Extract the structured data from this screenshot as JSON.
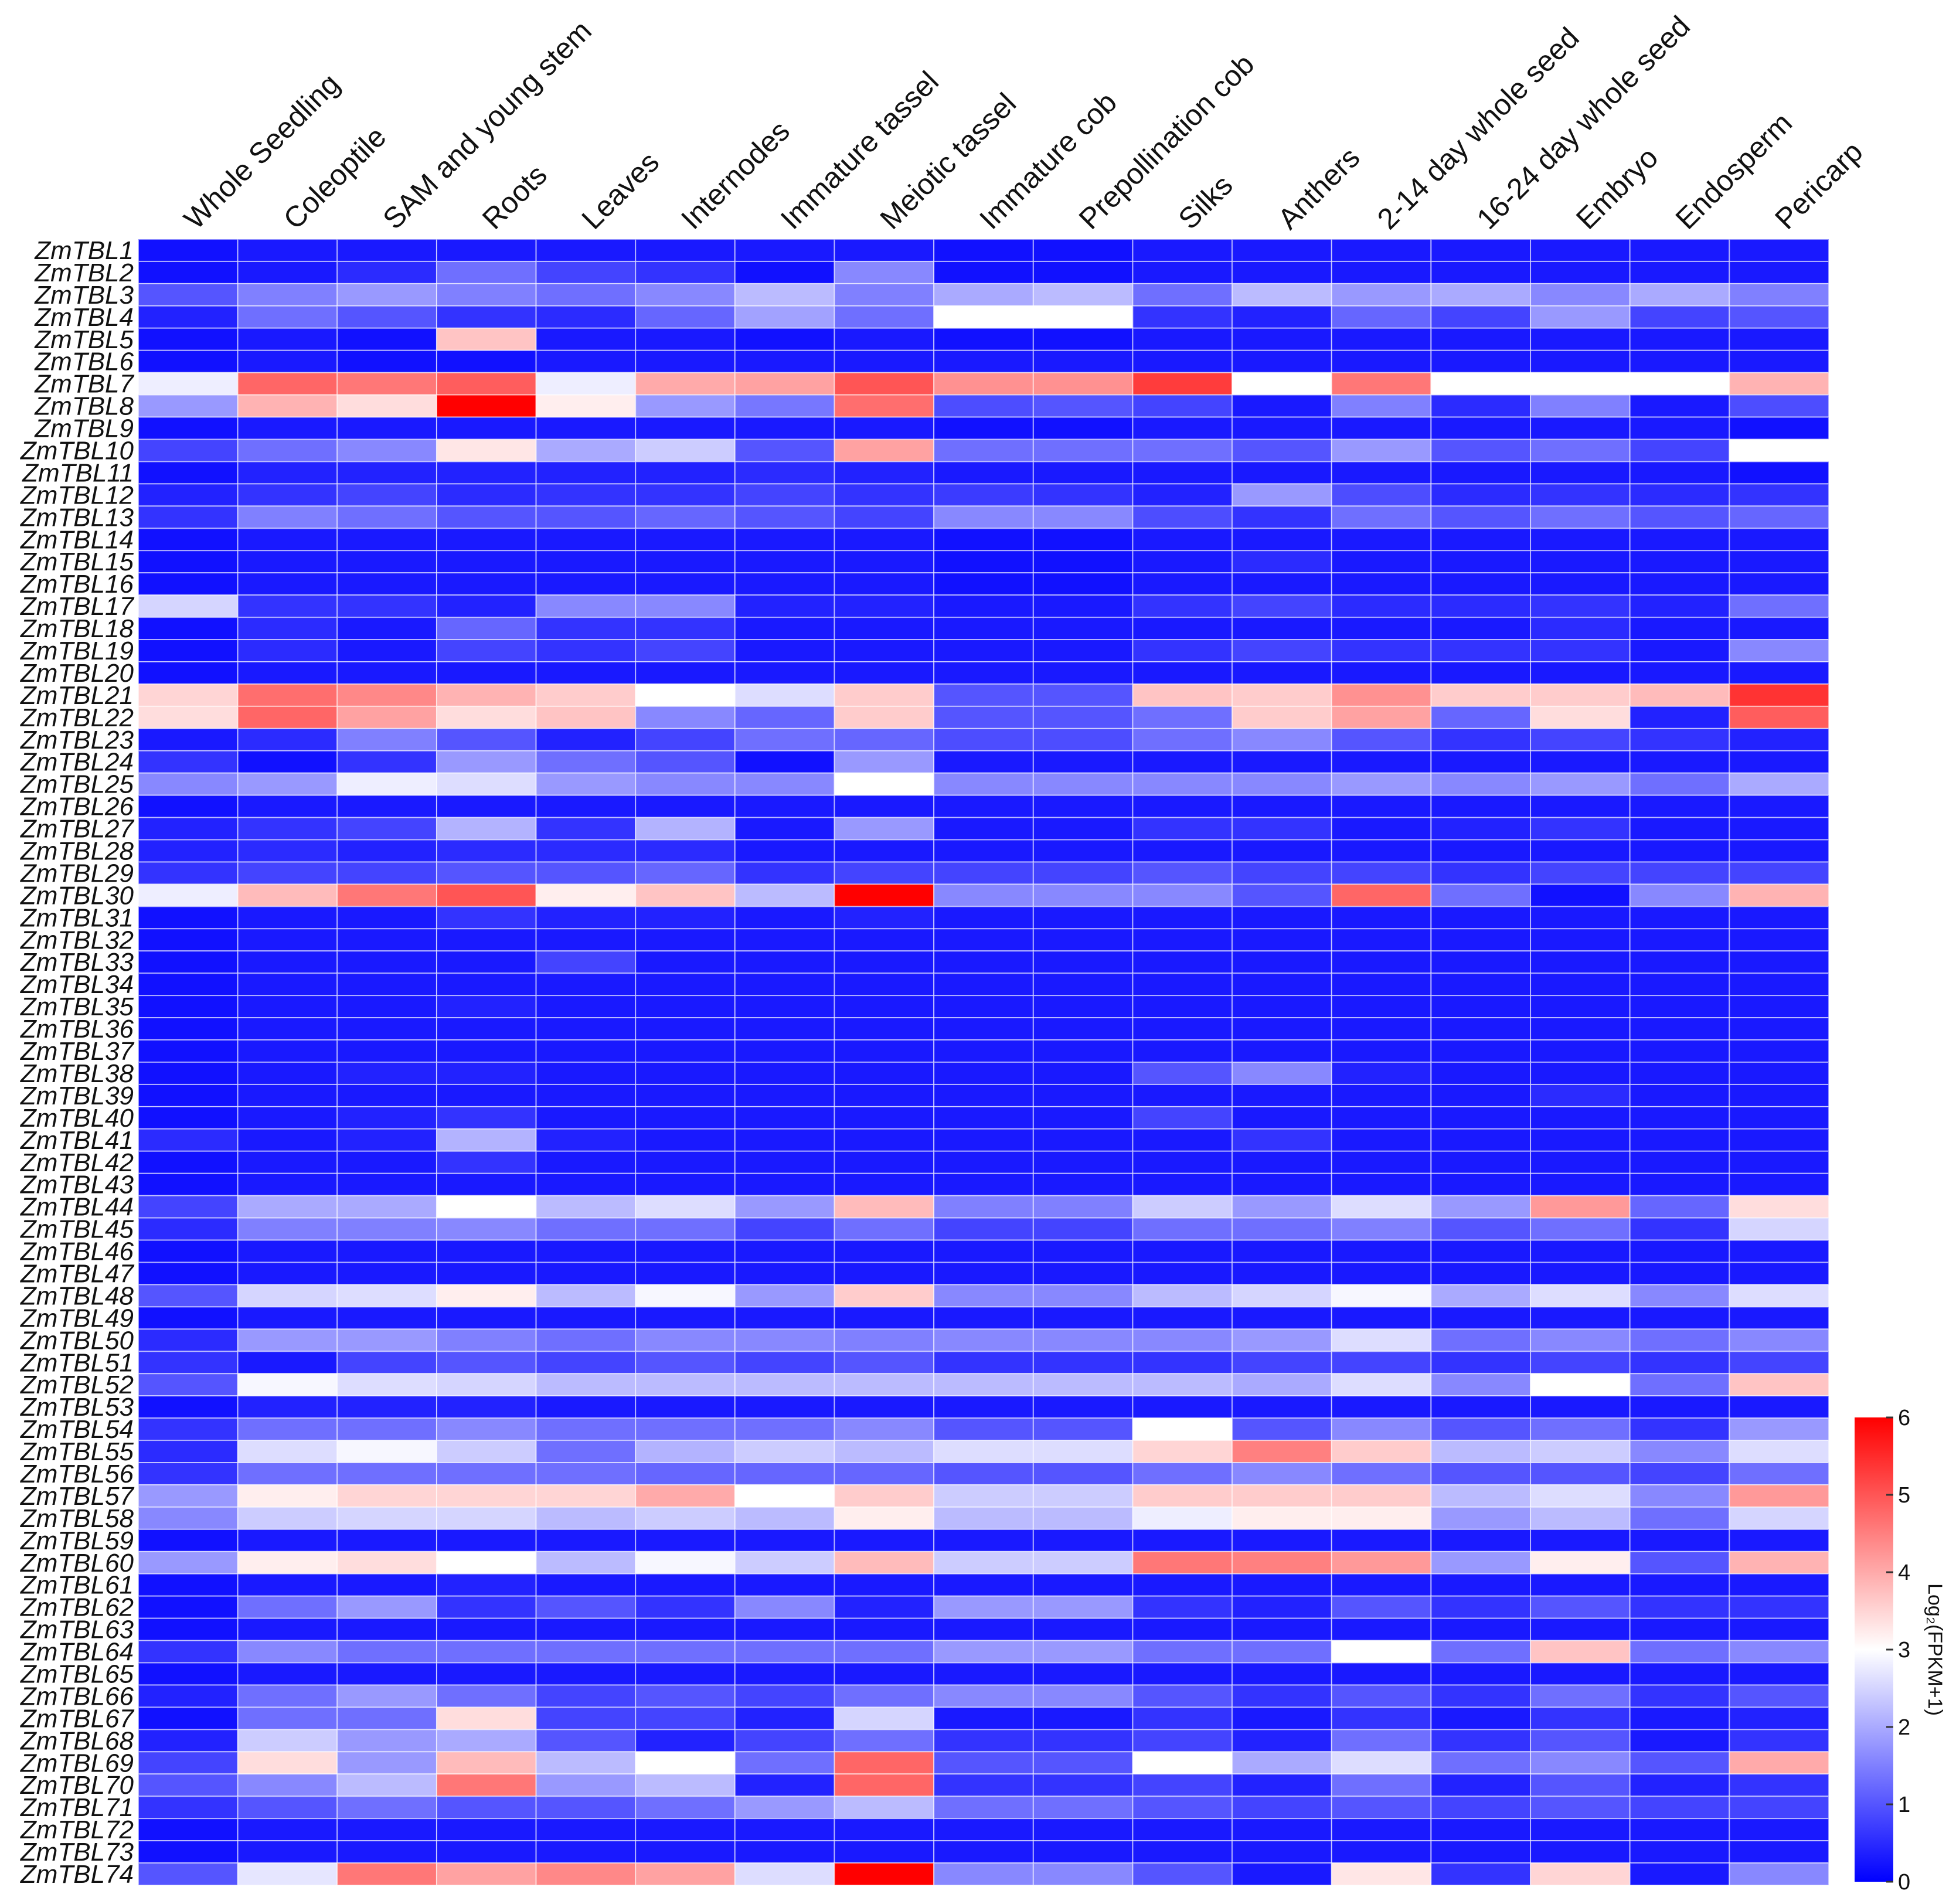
{
  "chart_data": {
    "type": "heatmap",
    "title": "",
    "columns": [
      "Whole Seedling",
      "Coleoptile",
      "SAM and young stem",
      "Roots",
      "Leaves",
      "Internodes",
      "Immature tassel",
      "Meiotic tassel",
      "Immature cob",
      "Prepollination cob",
      "Silks",
      "Anthers",
      "2-14 day whole seed",
      "16-24 day whole seed",
      "Embryo",
      "Endosperm",
      "Pericarp"
    ],
    "rows": [
      "ZmTBL1",
      "ZmTBL2",
      "ZmTBL3",
      "ZmTBL4",
      "ZmTBL5",
      "ZmTBL6",
      "ZmTBL7",
      "ZmTBL8",
      "ZmTBL9",
      "ZmTBL10",
      "ZmTBL11",
      "ZmTBL12",
      "ZmTBL13",
      "ZmTBL14",
      "ZmTBL15",
      "ZmTBL16",
      "ZmTBL17",
      "ZmTBL18",
      "ZmTBL19",
      "ZmTBL20",
      "ZmTBL21",
      "ZmTBL22",
      "ZmTBL23",
      "ZmTBL24",
      "ZmTBL25",
      "ZmTBL26",
      "ZmTBL27",
      "ZmTBL28",
      "ZmTBL29",
      "ZmTBL30",
      "ZmTBL31",
      "ZmTBL32",
      "ZmTBL33",
      "ZmTBL34",
      "ZmTBL35",
      "ZmTBL36",
      "ZmTBL37",
      "ZmTBL38",
      "ZmTBL39",
      "ZmTBL40",
      "ZmTBL41",
      "ZmTBL42",
      "ZmTBL43",
      "ZmTBL44",
      "ZmTBL45",
      "ZmTBL46",
      "ZmTBL47",
      "ZmTBL48",
      "ZmTBL49",
      "ZmTBL50",
      "ZmTBL51",
      "ZmTBL52",
      "ZmTBL53",
      "ZmTBL54",
      "ZmTBL55",
      "ZmTBL56",
      "ZmTBL57",
      "ZmTBL58",
      "ZmTBL59",
      "ZmTBL60",
      "ZmTBL61",
      "ZmTBL62",
      "ZmTBL63",
      "ZmTBL64",
      "ZmTBL65",
      "ZmTBL66",
      "ZmTBL67",
      "ZmTBL68",
      "ZmTBL69",
      "ZmTBL70",
      "ZmTBL71",
      "ZmTBL72",
      "ZmTBL73",
      "ZmTBL74"
    ],
    "values": [
      [
        0.2,
        0.3,
        0.3,
        0.3,
        0.3,
        0.3,
        0.3,
        0.3,
        0.2,
        0.2,
        0.3,
        0.3,
        0.3,
        0.3,
        0.3,
        0.3,
        0.3
      ],
      [
        0.2,
        0.3,
        0.5,
        1.3,
        0.8,
        0.6,
        0.2,
        1.6,
        0.2,
        0.2,
        0.3,
        0.3,
        0.3,
        0.3,
        0.3,
        0.3,
        0.3
      ],
      [
        1.0,
        1.5,
        1.8,
        1.5,
        1.3,
        1.6,
        2.2,
        1.5,
        2.0,
        2.2,
        1.3,
        2.2,
        1.8,
        2.0,
        1.6,
        2.0,
        1.5
      ],
      [
        0.4,
        1.3,
        1.0,
        0.6,
        0.5,
        1.2,
        1.9,
        1.3,
        3.0,
        3.0,
        0.6,
        0.4,
        1.2,
        0.8,
        1.8,
        0.8,
        1.0
      ],
      [
        0.2,
        0.3,
        0.2,
        3.7,
        0.3,
        0.3,
        0.2,
        0.3,
        0.2,
        0.2,
        0.3,
        0.3,
        0.3,
        0.3,
        0.3,
        0.3,
        0.3
      ],
      [
        0.2,
        0.3,
        0.2,
        0.2,
        0.3,
        0.3,
        0.3,
        0.3,
        0.3,
        0.3,
        0.3,
        0.3,
        0.3,
        0.3,
        0.3,
        0.3,
        0.3
      ],
      [
        2.8,
        4.8,
        4.6,
        4.9,
        2.8,
        4.0,
        4.1,
        5.0,
        4.3,
        4.3,
        5.3,
        3.0,
        4.6,
        3.0,
        3.0,
        3.0,
        3.9
      ],
      [
        1.8,
        3.9,
        3.4,
        6.0,
        3.2,
        1.8,
        1.4,
        4.7,
        0.9,
        1.0,
        0.8,
        0.3,
        1.5,
        0.5,
        1.5,
        0.3,
        0.9
      ],
      [
        0.2,
        0.3,
        0.3,
        0.3,
        0.3,
        0.3,
        0.3,
        0.3,
        0.2,
        0.2,
        0.3,
        0.3,
        0.3,
        0.3,
        0.3,
        0.3,
        0.2
      ],
      [
        0.8,
        1.3,
        1.6,
        3.3,
        2.0,
        2.4,
        1.0,
        4.1,
        1.3,
        1.3,
        1.3,
        1.0,
        1.8,
        1.0,
        1.3,
        0.8,
        3.0
      ],
      [
        0.2,
        0.4,
        0.4,
        0.4,
        0.4,
        0.4,
        0.5,
        0.4,
        0.3,
        0.3,
        0.3,
        0.3,
        0.3,
        0.3,
        0.3,
        0.3,
        0.2
      ],
      [
        0.4,
        0.6,
        0.8,
        0.5,
        0.6,
        0.6,
        0.8,
        0.6,
        0.7,
        0.6,
        0.4,
        1.8,
        0.9,
        0.5,
        0.6,
        0.5,
        0.6
      ],
      [
        0.6,
        1.5,
        1.3,
        1.0,
        1.0,
        1.2,
        1.0,
        0.8,
        1.6,
        1.6,
        0.9,
        0.6,
        1.3,
        1.0,
        1.3,
        1.0,
        1.2
      ],
      [
        0.2,
        0.3,
        0.3,
        0.3,
        0.3,
        0.3,
        0.3,
        0.3,
        0.2,
        0.2,
        0.3,
        0.3,
        0.3,
        0.3,
        0.3,
        0.3,
        0.3
      ],
      [
        0.2,
        0.3,
        0.3,
        0.3,
        0.3,
        0.3,
        0.3,
        0.3,
        0.2,
        0.2,
        0.3,
        0.5,
        0.3,
        0.3,
        0.3,
        0.3,
        0.3
      ],
      [
        0.2,
        0.3,
        0.3,
        0.3,
        0.3,
        0.3,
        0.3,
        0.3,
        0.2,
        0.2,
        0.3,
        0.3,
        0.3,
        0.3,
        0.3,
        0.3,
        0.3
      ],
      [
        2.5,
        0.6,
        0.6,
        0.4,
        1.6,
        1.6,
        0.4,
        0.4,
        0.3,
        0.3,
        0.6,
        0.8,
        0.5,
        0.5,
        0.6,
        0.4,
        1.3
      ],
      [
        0.2,
        0.5,
        0.3,
        1.2,
        0.6,
        0.6,
        0.3,
        0.3,
        0.3,
        0.3,
        0.3,
        0.3,
        0.3,
        0.3,
        0.5,
        0.3,
        0.3
      ],
      [
        0.2,
        0.5,
        0.3,
        0.8,
        0.6,
        0.8,
        0.3,
        0.3,
        0.3,
        0.3,
        0.6,
        0.8,
        0.6,
        0.6,
        0.6,
        0.3,
        1.6
      ],
      [
        0.2,
        0.3,
        0.3,
        0.3,
        0.3,
        0.3,
        0.3,
        0.3,
        0.3,
        0.3,
        0.3,
        0.3,
        0.3,
        0.3,
        0.3,
        0.3,
        0.3
      ],
      [
        3.5,
        4.7,
        4.4,
        3.9,
        3.6,
        3.0,
        2.6,
        3.6,
        1.0,
        1.0,
        3.7,
        3.6,
        4.3,
        3.6,
        3.6,
        3.8,
        5.4
      ],
      [
        3.4,
        4.8,
        4.1,
        3.4,
        3.7,
        1.6,
        1.2,
        3.6,
        1.0,
        1.0,
        1.3,
        3.6,
        4.1,
        1.2,
        3.4,
        0.4,
        4.9
      ],
      [
        0.3,
        0.5,
        1.5,
        1.0,
        0.4,
        0.8,
        1.3,
        1.2,
        0.9,
        0.9,
        1.3,
        1.6,
        1.0,
        0.6,
        0.8,
        0.6,
        0.4
      ],
      [
        0.6,
        0.2,
        0.6,
        1.8,
        1.3,
        1.0,
        0.2,
        1.8,
        0.3,
        0.3,
        0.3,
        0.3,
        0.3,
        0.3,
        0.3,
        0.3,
        0.3
      ],
      [
        1.6,
        1.8,
        2.8,
        2.6,
        1.8,
        1.6,
        1.6,
        3.0,
        1.6,
        1.6,
        1.6,
        1.6,
        1.8,
        1.6,
        1.8,
        1.3,
        2.0
      ],
      [
        0.2,
        0.3,
        0.3,
        0.3,
        0.3,
        0.3,
        0.3,
        0.3,
        0.3,
        0.3,
        0.3,
        0.3,
        0.3,
        0.3,
        0.3,
        0.3,
        0.3
      ],
      [
        0.4,
        0.6,
        0.8,
        2.1,
        0.6,
        2.1,
        0.3,
        1.8,
        0.3,
        0.3,
        0.6,
        0.6,
        0.3,
        0.4,
        0.6,
        0.3,
        0.3
      ],
      [
        0.4,
        0.5,
        0.4,
        0.5,
        0.5,
        0.5,
        0.3,
        0.3,
        0.3,
        0.3,
        0.3,
        0.3,
        0.3,
        0.3,
        0.3,
        0.3,
        0.3
      ],
      [
        0.6,
        0.8,
        0.8,
        1.0,
        1.0,
        1.2,
        0.6,
        0.8,
        0.8,
        0.8,
        1.0,
        0.8,
        0.8,
        0.6,
        0.8,
        0.8,
        0.8
      ],
      [
        2.8,
        3.8,
        4.6,
        5.0,
        3.2,
        3.7,
        2.2,
        6.0,
        1.6,
        1.6,
        1.6,
        1.0,
        4.8,
        1.3,
        0.2,
        1.6,
        3.9
      ],
      [
        0.2,
        0.3,
        0.3,
        0.6,
        0.4,
        0.4,
        0.3,
        0.4,
        0.3,
        0.3,
        0.3,
        0.3,
        0.3,
        0.3,
        0.3,
        0.3,
        0.3
      ],
      [
        0.2,
        0.3,
        0.3,
        0.3,
        0.3,
        0.3,
        0.3,
        0.3,
        0.3,
        0.3,
        0.3,
        0.3,
        0.3,
        0.3,
        0.3,
        0.3,
        0.3
      ],
      [
        0.2,
        0.3,
        0.3,
        0.3,
        0.8,
        0.3,
        0.3,
        0.3,
        0.3,
        0.3,
        0.3,
        0.3,
        0.3,
        0.3,
        0.3,
        0.3,
        0.3
      ],
      [
        0.2,
        0.3,
        0.3,
        0.3,
        0.3,
        0.3,
        0.3,
        0.3,
        0.3,
        0.3,
        0.3,
        0.3,
        0.3,
        0.3,
        0.3,
        0.3,
        0.3
      ],
      [
        0.2,
        0.3,
        0.3,
        0.4,
        0.3,
        0.3,
        0.3,
        0.3,
        0.3,
        0.3,
        0.3,
        0.3,
        0.3,
        0.3,
        0.3,
        0.3,
        0.3
      ],
      [
        0.2,
        0.3,
        0.3,
        0.3,
        0.3,
        0.3,
        0.3,
        0.3,
        0.3,
        0.3,
        0.3,
        0.3,
        0.3,
        0.3,
        0.3,
        0.3,
        0.3
      ],
      [
        0.2,
        0.3,
        0.3,
        0.3,
        0.3,
        0.3,
        0.3,
        0.3,
        0.3,
        0.3,
        0.3,
        0.3,
        0.3,
        0.3,
        0.3,
        0.3,
        0.3
      ],
      [
        0.2,
        0.3,
        0.4,
        0.4,
        0.3,
        0.3,
        0.3,
        0.3,
        0.3,
        0.3,
        1.0,
        1.6,
        0.4,
        0.3,
        0.3,
        0.3,
        0.3
      ],
      [
        0.2,
        0.3,
        0.3,
        0.3,
        0.3,
        0.3,
        0.3,
        0.3,
        0.3,
        0.3,
        0.3,
        0.3,
        0.3,
        0.3,
        0.5,
        0.3,
        0.3
      ],
      [
        0.2,
        0.3,
        0.4,
        0.6,
        0.3,
        0.3,
        0.3,
        0.3,
        0.3,
        0.3,
        0.8,
        0.3,
        0.3,
        0.3,
        0.3,
        0.3,
        0.3
      ],
      [
        0.5,
        0.3,
        0.4,
        2.1,
        0.4,
        0.3,
        0.3,
        0.3,
        0.3,
        0.3,
        0.3,
        0.6,
        0.3,
        0.3,
        0.3,
        0.3,
        0.3
      ],
      [
        0.2,
        0.3,
        0.3,
        0.6,
        0.3,
        0.3,
        0.3,
        0.3,
        0.3,
        0.3,
        0.3,
        0.3,
        0.3,
        0.3,
        0.3,
        0.3,
        0.3
      ],
      [
        0.2,
        0.3,
        0.3,
        0.3,
        0.3,
        0.3,
        0.3,
        0.3,
        0.3,
        0.3,
        0.3,
        0.3,
        0.3,
        0.3,
        0.3,
        0.3,
        0.3
      ],
      [
        0.8,
        2.0,
        2.0,
        3.0,
        2.2,
        2.6,
        1.8,
        3.8,
        1.5,
        1.5,
        2.4,
        1.8,
        2.6,
        1.8,
        4.2,
        1.2,
        3.4
      ],
      [
        0.5,
        1.5,
        1.5,
        1.6,
        1.3,
        1.3,
        0.8,
        1.3,
        0.8,
        0.8,
        1.3,
        1.3,
        1.5,
        1.0,
        1.3,
        0.6,
        2.5
      ],
      [
        0.2,
        0.3,
        0.3,
        0.3,
        0.3,
        0.3,
        0.3,
        0.3,
        0.3,
        0.3,
        0.3,
        0.3,
        0.3,
        0.3,
        0.3,
        0.3,
        0.3
      ],
      [
        0.2,
        0.3,
        0.3,
        0.3,
        0.3,
        0.3,
        0.3,
        0.3,
        0.3,
        0.3,
        0.3,
        0.3,
        0.3,
        0.3,
        0.3,
        0.3,
        0.3
      ],
      [
        1.0,
        2.5,
        2.6,
        3.2,
        2.2,
        2.9,
        1.8,
        3.6,
        1.6,
        1.6,
        2.2,
        2.5,
        2.9,
        2.0,
        2.6,
        1.6,
        2.6
      ],
      [
        0.2,
        0.3,
        0.3,
        0.3,
        0.3,
        0.3,
        0.3,
        0.3,
        0.3,
        0.3,
        0.3,
        0.3,
        0.3,
        0.3,
        0.3,
        0.3,
        0.3
      ],
      [
        0.5,
        1.8,
        1.8,
        1.5,
        1.3,
        1.6,
        1.6,
        1.5,
        1.6,
        1.6,
        1.6,
        1.8,
        2.6,
        1.3,
        1.6,
        1.3,
        1.6
      ],
      [
        0.6,
        0.3,
        0.8,
        1.0,
        0.8,
        1.0,
        0.8,
        1.0,
        0.6,
        0.6,
        0.6,
        0.8,
        0.8,
        0.6,
        0.8,
        0.6,
        0.8
      ],
      [
        1.0,
        2.9,
        2.6,
        2.5,
        2.2,
        2.2,
        2.2,
        2.2,
        2.2,
        2.2,
        2.2,
        2.0,
        2.6,
        1.6,
        3.0,
        1.3,
        3.7
      ],
      [
        0.2,
        0.4,
        0.4,
        0.4,
        0.3,
        0.3,
        0.3,
        0.3,
        0.3,
        0.3,
        0.3,
        0.3,
        0.3,
        0.3,
        0.3,
        0.3,
        0.3
      ],
      [
        0.6,
        1.3,
        1.3,
        1.6,
        1.3,
        1.3,
        1.3,
        1.6,
        1.0,
        1.0,
        3.0,
        1.0,
        1.6,
        1.0,
        1.3,
        0.6,
        1.8
      ],
      [
        0.5,
        2.6,
        2.9,
        2.4,
        1.3,
        2.1,
        2.4,
        2.2,
        2.6,
        2.6,
        3.5,
        4.5,
        3.6,
        2.2,
        2.4,
        1.6,
        2.6
      ],
      [
        0.6,
        1.3,
        1.3,
        1.3,
        1.3,
        1.2,
        1.2,
        1.2,
        1.0,
        1.0,
        1.3,
        1.6,
        1.3,
        1.0,
        1.0,
        0.8,
        1.3
      ],
      [
        1.8,
        3.2,
        3.5,
        3.5,
        3.5,
        4.0,
        3.0,
        3.6,
        2.4,
        2.4,
        3.6,
        3.6,
        3.6,
        2.2,
        2.6,
        1.6,
        4.2
      ],
      [
        1.6,
        2.4,
        2.5,
        2.5,
        2.2,
        2.4,
        2.2,
        3.2,
        2.2,
        2.2,
        2.8,
        3.2,
        3.2,
        1.8,
        2.2,
        1.3,
        2.5
      ],
      [
        0.2,
        0.3,
        0.3,
        0.3,
        0.3,
        0.3,
        0.3,
        0.3,
        0.3,
        0.3,
        0.3,
        0.3,
        0.3,
        0.3,
        0.3,
        0.3,
        0.3
      ],
      [
        1.8,
        3.2,
        3.4,
        3.0,
        2.2,
        2.9,
        2.4,
        3.8,
        2.4,
        2.4,
        4.6,
        4.5,
        4.2,
        1.8,
        3.2,
        1.0,
        3.9
      ],
      [
        0.2,
        0.3,
        0.3,
        0.4,
        0.3,
        0.3,
        0.3,
        0.3,
        0.3,
        0.3,
        0.3,
        0.3,
        0.3,
        0.3,
        0.3,
        0.3,
        0.3
      ],
      [
        0.2,
        1.3,
        1.8,
        0.6,
        1.0,
        0.6,
        1.6,
        0.4,
        1.8,
        1.8,
        0.6,
        0.4,
        1.0,
        0.6,
        1.0,
        0.6,
        0.6
      ],
      [
        0.2,
        0.3,
        0.3,
        0.3,
        0.3,
        0.3,
        0.3,
        0.3,
        0.3,
        0.3,
        0.3,
        0.3,
        0.3,
        0.3,
        0.3,
        0.3,
        0.3
      ],
      [
        0.6,
        1.6,
        1.3,
        1.3,
        1.3,
        1.3,
        1.3,
        1.3,
        1.8,
        1.8,
        1.3,
        1.3,
        3.0,
        1.3,
        3.7,
        1.3,
        1.6
      ],
      [
        0.2,
        0.3,
        0.3,
        0.3,
        0.3,
        0.3,
        0.3,
        0.3,
        0.3,
        0.3,
        0.3,
        0.3,
        0.3,
        0.3,
        0.3,
        0.3,
        0.3
      ],
      [
        0.4,
        1.3,
        1.8,
        1.3,
        0.8,
        1.0,
        0.8,
        1.3,
        1.6,
        1.6,
        1.0,
        0.6,
        1.0,
        0.6,
        1.3,
        0.6,
        1.0
      ],
      [
        0.2,
        1.3,
        1.3,
        3.4,
        0.8,
        0.8,
        0.4,
        2.5,
        0.3,
        0.3,
        0.6,
        0.3,
        0.6,
        0.3,
        0.6,
        0.3,
        0.4
      ],
      [
        0.4,
        2.4,
        1.8,
        2.0,
        1.0,
        0.4,
        0.8,
        1.3,
        0.6,
        0.6,
        0.8,
        0.4,
        1.3,
        0.6,
        1.0,
        0.3,
        0.6
      ],
      [
        0.8,
        3.4,
        1.8,
        3.8,
        2.2,
        3.0,
        1.3,
        4.8,
        1.0,
        1.0,
        3.0,
        2.0,
        2.6,
        1.3,
        1.6,
        1.0,
        4.0
      ],
      [
        1.0,
        1.6,
        2.2,
        4.6,
        1.8,
        2.2,
        0.4,
        4.8,
        0.6,
        0.6,
        0.8,
        0.4,
        1.3,
        0.4,
        1.0,
        0.4,
        0.6
      ],
      [
        0.6,
        1.0,
        1.3,
        1.0,
        1.0,
        1.3,
        1.8,
        2.2,
        1.3,
        1.3,
        1.0,
        0.8,
        1.0,
        0.8,
        1.0,
        0.8,
        0.8
      ],
      [
        0.2,
        0.3,
        0.3,
        0.3,
        0.3,
        0.3,
        0.3,
        0.3,
        0.3,
        0.3,
        0.3,
        0.3,
        0.3,
        0.3,
        0.3,
        0.3,
        0.3
      ],
      [
        0.2,
        0.3,
        0.3,
        0.3,
        0.3,
        0.3,
        0.3,
        0.3,
        0.3,
        0.3,
        0.3,
        0.3,
        0.3,
        0.3,
        0.3,
        0.3,
        0.3
      ],
      [
        1.0,
        2.7,
        4.6,
        4.1,
        4.4,
        4.1,
        2.6,
        6.0,
        1.6,
        1.6,
        1.0,
        0.3,
        3.3,
        0.6,
        3.5,
        0.3,
        1.6
      ]
    ],
    "colorbar": {
      "label": "Log₂(FPKM+1)",
      "ticks": [
        "0",
        "1",
        "2",
        "3",
        "4",
        "5",
        "6"
      ],
      "range": [
        0,
        6
      ],
      "low_color": "#0000ff",
      "mid_color": "#ffffff",
      "high_color": "#ff0000",
      "mid_value": 3
    }
  }
}
